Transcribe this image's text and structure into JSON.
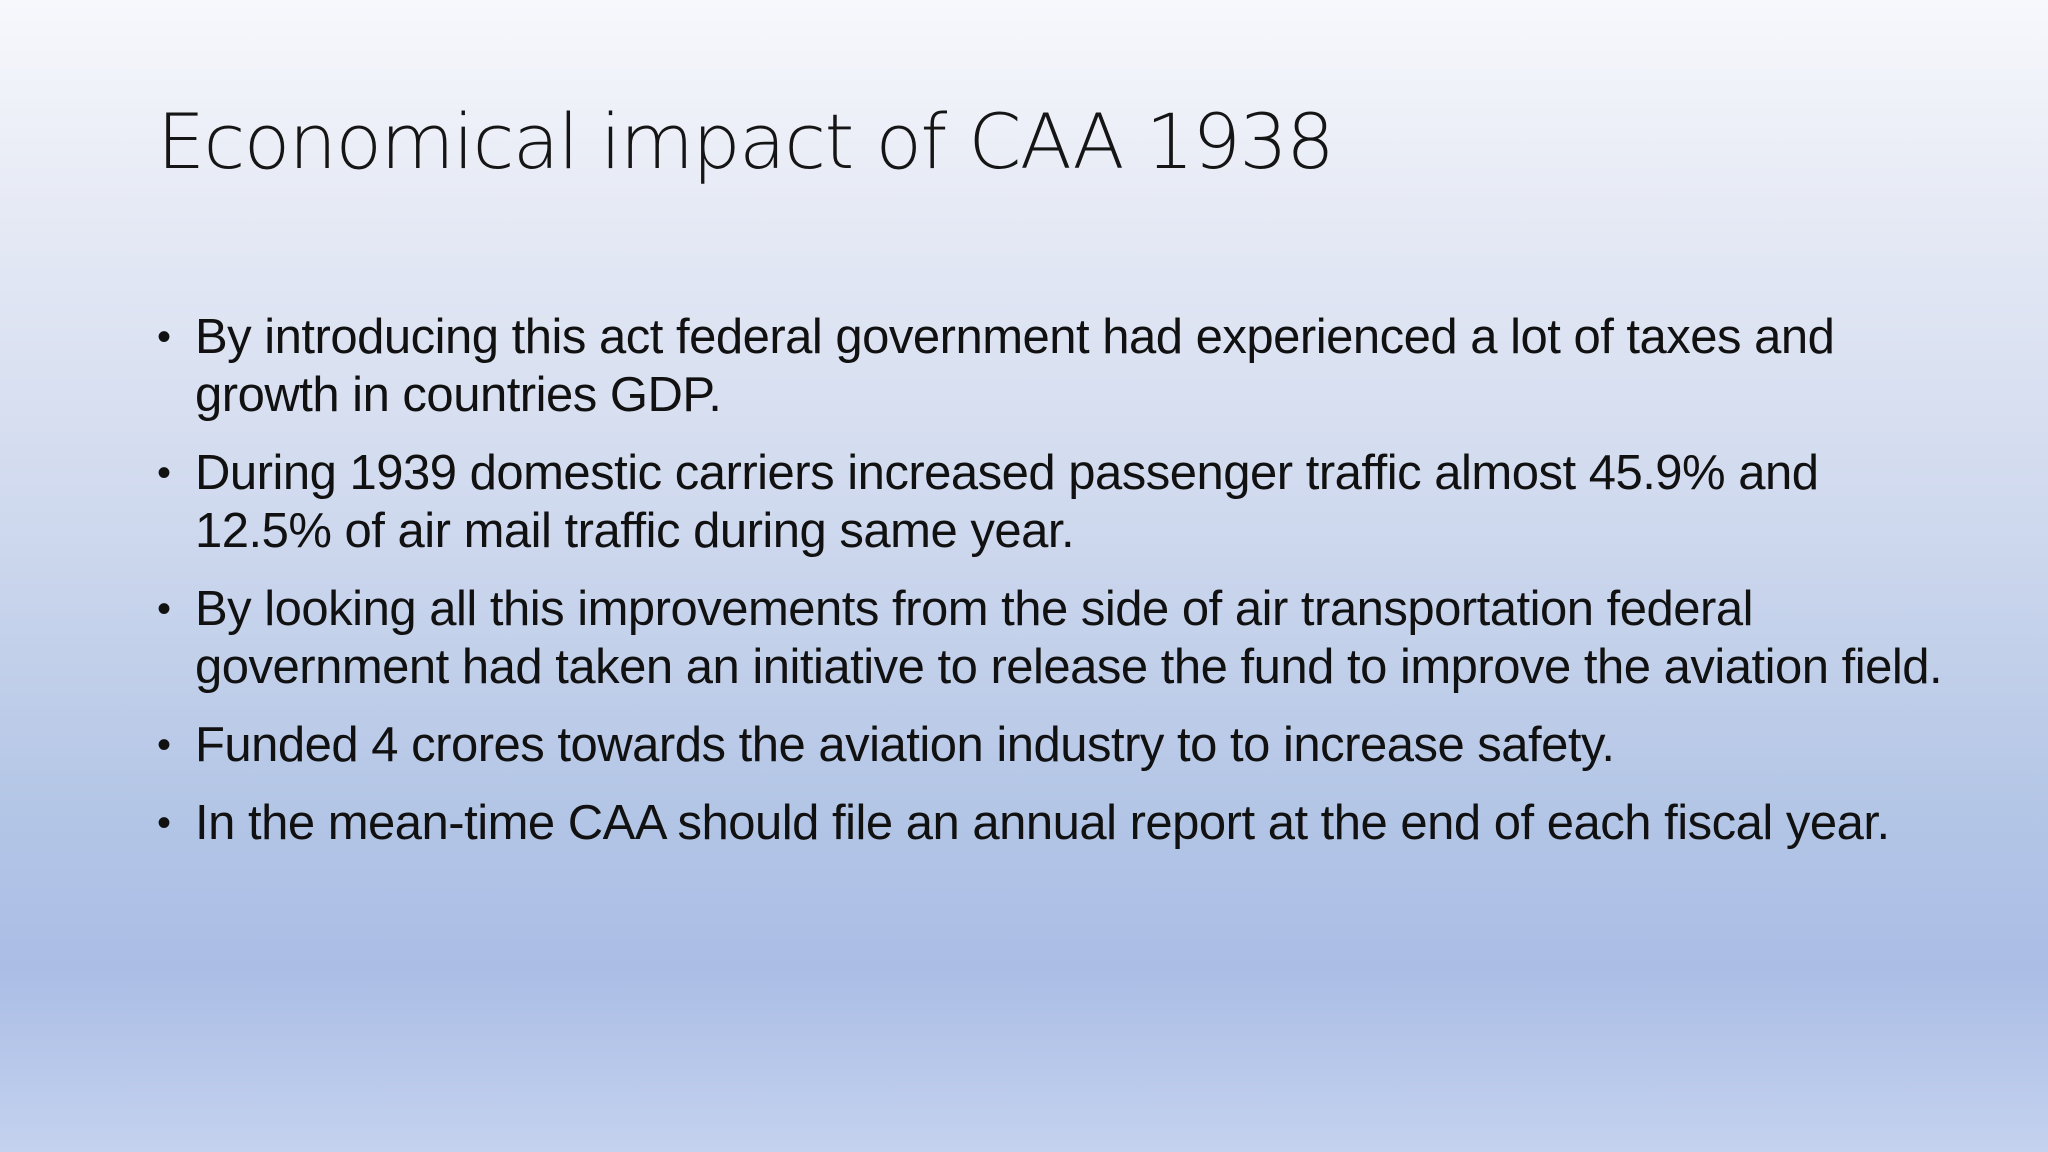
{
  "slide": {
    "title": "Economical impact of CAA 1938",
    "bullet_symbol": "•",
    "bullets": [
      "By introducing this act federal government had experienced a lot of taxes and growth in countries GDP.",
      "During  1939 domestic carriers increased passenger traffic almost 45.9% and 12.5% of air mail traffic during same year.",
      "By looking all this improvements from the side of air transportation federal government had taken an initiative to release the fund to improve the aviation field.",
      "Funded 4 crores towards the aviation industry to to increase safety.",
      "In the mean-time CAA should file an annual report at the end of each fiscal year."
    ]
  }
}
